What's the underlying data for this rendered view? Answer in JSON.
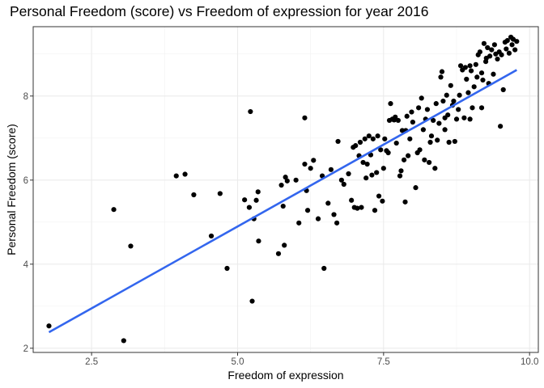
{
  "chart_data": {
    "type": "scatter",
    "title": "Personal Freedom (score) vs Freedom of expression for year 2016",
    "xlabel": "Freedom of expression",
    "ylabel": "Personal Freedom (score)",
    "xlim": [
      1.5,
      10.15
    ],
    "ylim": [
      1.9,
      9.65
    ],
    "x_ticks": [
      2.5,
      5.0,
      7.5,
      10.0
    ],
    "x_tick_labels": [
      "2.5",
      "5.0",
      "7.5",
      "10.0"
    ],
    "y_ticks": [
      2,
      4,
      6,
      8
    ],
    "y_tick_labels": [
      "2",
      "4",
      "6",
      "8"
    ],
    "grid": true,
    "point_color": "#000000",
    "line_color": "#3366ee",
    "regression_line": {
      "x": [
        1.77,
        9.78
      ],
      "y": [
        2.38,
        8.62
      ]
    },
    "points": [
      [
        1.77,
        2.53
      ],
      [
        3.05,
        2.18
      ],
      [
        2.88,
        5.3
      ],
      [
        3.17,
        4.43
      ],
      [
        3.95,
        6.1
      ],
      [
        4.1,
        6.14
      ],
      [
        4.25,
        5.65
      ],
      [
        4.55,
        4.67
      ],
      [
        4.7,
        5.68
      ],
      [
        4.82,
        3.9
      ],
      [
        5.12,
        5.53
      ],
      [
        5.2,
        5.35
      ],
      [
        5.22,
        7.63
      ],
      [
        5.25,
        3.12
      ],
      [
        5.28,
        5.08
      ],
      [
        5.32,
        5.52
      ],
      [
        5.35,
        5.72
      ],
      [
        5.36,
        4.55
      ],
      [
        5.7,
        4.25
      ],
      [
        5.75,
        5.88
      ],
      [
        5.78,
        5.38
      ],
      [
        5.8,
        4.45
      ],
      [
        5.82,
        6.07
      ],
      [
        5.85,
        5.98
      ],
      [
        6.0,
        6.0
      ],
      [
        6.05,
        4.98
      ],
      [
        6.15,
        6.38
      ],
      [
        6.15,
        7.48
      ],
      [
        6.18,
        5.75
      ],
      [
        6.2,
        5.28
      ],
      [
        6.25,
        6.28
      ],
      [
        6.3,
        6.47
      ],
      [
        6.38,
        5.08
      ],
      [
        6.45,
        6.1
      ],
      [
        6.48,
        3.9
      ],
      [
        6.55,
        5.45
      ],
      [
        6.6,
        6.25
      ],
      [
        6.65,
        5.18
      ],
      [
        6.7,
        4.98
      ],
      [
        6.72,
        6.92
      ],
      [
        6.78,
        6.0
      ],
      [
        6.82,
        5.9
      ],
      [
        6.9,
        6.15
      ],
      [
        6.95,
        5.52
      ],
      [
        6.98,
        6.78
      ],
      [
        7.0,
        5.35
      ],
      [
        7.02,
        6.82
      ],
      [
        7.05,
        5.33
      ],
      [
        7.08,
        6.58
      ],
      [
        7.1,
        6.9
      ],
      [
        7.12,
        5.35
      ],
      [
        7.15,
        6.42
      ],
      [
        7.18,
        6.98
      ],
      [
        7.2,
        6.05
      ],
      [
        7.22,
        6.38
      ],
      [
        7.25,
        7.05
      ],
      [
        7.28,
        6.6
      ],
      [
        7.3,
        6.12
      ],
      [
        7.32,
        6.98
      ],
      [
        7.35,
        5.28
      ],
      [
        7.38,
        6.18
      ],
      [
        7.4,
        7.05
      ],
      [
        7.42,
        5.62
      ],
      [
        7.45,
        6.72
      ],
      [
        7.48,
        5.5
      ],
      [
        7.5,
        6.28
      ],
      [
        7.52,
        6.98
      ],
      [
        7.55,
        6.7
      ],
      [
        7.58,
        6.65
      ],
      [
        7.6,
        7.42
      ],
      [
        7.62,
        7.82
      ],
      [
        7.65,
        7.45
      ],
      [
        7.68,
        7.43
      ],
      [
        7.7,
        7.5
      ],
      [
        7.72,
        6.88
      ],
      [
        7.75,
        7.42
      ],
      [
        7.78,
        6.1
      ],
      [
        7.8,
        6.22
      ],
      [
        7.82,
        7.18
      ],
      [
        7.85,
        6.48
      ],
      [
        7.87,
        5.48
      ],
      [
        7.9,
        7.52
      ],
      [
        7.92,
        6.58
      ],
      [
        7.95,
        6.98
      ],
      [
        7.98,
        7.62
      ],
      [
        8.0,
        7.38
      ],
      [
        8.05,
        5.82
      ],
      [
        8.08,
        6.65
      ],
      [
        8.1,
        7.72
      ],
      [
        8.12,
        6.72
      ],
      [
        8.15,
        7.95
      ],
      [
        8.18,
        7.2
      ],
      [
        8.2,
        6.48
      ],
      [
        8.22,
        7.45
      ],
      [
        8.25,
        7.68
      ],
      [
        8.28,
        6.42
      ],
      [
        8.3,
        6.9
      ],
      [
        8.32,
        7.05
      ],
      [
        8.35,
        7.42
      ],
      [
        8.38,
        6.28
      ],
      [
        8.4,
        7.82
      ],
      [
        8.42,
        6.95
      ],
      [
        8.45,
        7.35
      ],
      [
        8.48,
        8.45
      ],
      [
        8.5,
        8.58
      ],
      [
        8.52,
        7.88
      ],
      [
        8.55,
        7.2
      ],
      [
        8.58,
        8.02
      ],
      [
        8.6,
        7.55
      ],
      [
        8.62,
        6.9
      ],
      [
        8.65,
        8.25
      ],
      [
        8.68,
        7.78
      ],
      [
        8.7,
        7.88
      ],
      [
        8.72,
        6.92
      ],
      [
        8.75,
        7.45
      ],
      [
        8.78,
        7.68
      ],
      [
        8.8,
        8.02
      ],
      [
        8.82,
        8.72
      ],
      [
        8.85,
        8.62
      ],
      [
        8.88,
        7.48
      ],
      [
        8.9,
        8.68
      ],
      [
        8.92,
        8.4
      ],
      [
        8.95,
        8.08
      ],
      [
        8.98,
        8.72
      ],
      [
        9.0,
        8.6
      ],
      [
        9.02,
        7.72
      ],
      [
        9.05,
        8.22
      ],
      [
        9.08,
        8.75
      ],
      [
        9.1,
        8.45
      ],
      [
        9.12,
        8.98
      ],
      [
        9.15,
        9.05
      ],
      [
        9.18,
        8.55
      ],
      [
        9.2,
        8.38
      ],
      [
        9.22,
        9.25
      ],
      [
        9.25,
        8.82
      ],
      [
        9.28,
        9.15
      ],
      [
        9.3,
        8.3
      ],
      [
        9.32,
        8.95
      ],
      [
        9.35,
        9.1
      ],
      [
        9.38,
        8.52
      ],
      [
        9.4,
        9.22
      ],
      [
        9.42,
        9.0
      ],
      [
        9.45,
        8.88
      ],
      [
        9.48,
        9.05
      ],
      [
        9.5,
        7.28
      ],
      [
        9.52,
        8.98
      ],
      [
        9.55,
        8.15
      ],
      [
        9.58,
        9.28
      ],
      [
        9.6,
        9.12
      ],
      [
        9.62,
        9.32
      ],
      [
        9.65,
        9.02
      ],
      [
        9.68,
        9.4
      ],
      [
        9.7,
        9.22
      ],
      [
        9.72,
        9.35
      ],
      [
        9.75,
        9.1
      ],
      [
        9.78,
        9.3
      ],
      [
        8.98,
        7.45
      ],
      [
        9.18,
        7.72
      ],
      [
        8.55,
        7.48
      ],
      [
        7.88,
        7.18
      ],
      [
        9.26,
        8.9
      ]
    ]
  }
}
